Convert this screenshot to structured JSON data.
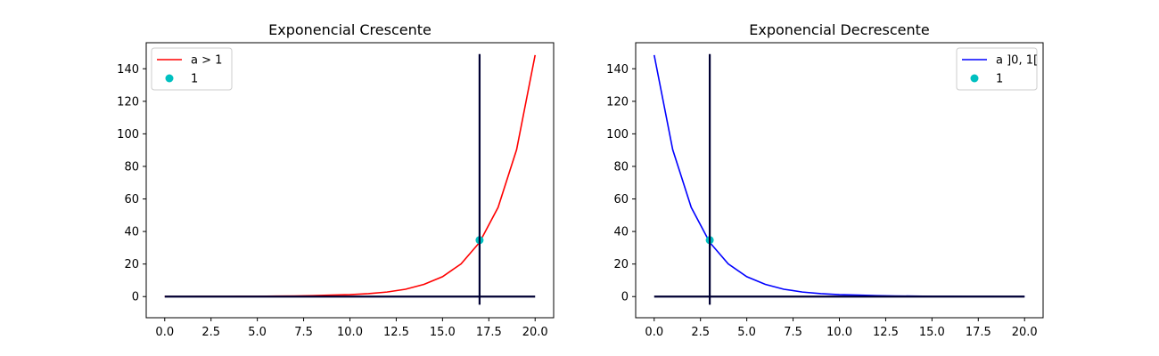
{
  "chart_data": [
    {
      "type": "line",
      "title": "Exponencial Crescente",
      "xlabel": "",
      "ylabel": "",
      "xlim": [
        -1,
        21
      ],
      "ylim": [
        -13,
        156
      ],
      "xticks": [
        "0.0",
        "2.5",
        "5.0",
        "7.5",
        "10.0",
        "12.5",
        "15.0",
        "17.5",
        "20.0"
      ],
      "yticks": [
        "0",
        "20",
        "40",
        "60",
        "80",
        "100",
        "120",
        "140"
      ],
      "grid": false,
      "legend_position": "upper left",
      "series": [
        {
          "name": "a > 1",
          "color": "#ff0000",
          "x": [
            0,
            1,
            2,
            3,
            4,
            5,
            6,
            7,
            8,
            9,
            10,
            11,
            12,
            13,
            14,
            15,
            16,
            17,
            18,
            19,
            20
          ],
          "y": [
            0,
            0.05,
            0.1,
            0.1,
            0.15,
            0.2,
            0.3,
            0.4,
            0.6,
            0.9,
            1.2,
            1.8,
            2.8,
            4.5,
            7.5,
            12.2,
            20.1,
            33.3,
            54.8,
            90.3,
            148.4
          ]
        }
      ],
      "point": {
        "name": "1",
        "color": "#00c0c0",
        "x": 17,
        "y": 34.7
      },
      "hline": {
        "y": 0,
        "x": [
          0,
          20
        ],
        "color": "#000033"
      },
      "vline": {
        "x": 17,
        "y": [
          -5,
          149
        ],
        "color": "#000033"
      }
    },
    {
      "type": "line",
      "title": "Exponencial Decrescente",
      "xlabel": "",
      "ylabel": "",
      "xlim": [
        -1,
        21
      ],
      "ylim": [
        -13,
        156
      ],
      "xticks": [
        "0.0",
        "2.5",
        "5.0",
        "7.5",
        "10.0",
        "12.5",
        "15.0",
        "17.5",
        "20.0"
      ],
      "yticks": [
        "0",
        "20",
        "40",
        "60",
        "80",
        "100",
        "120",
        "140"
      ],
      "grid": false,
      "legend_position": "upper right",
      "series": [
        {
          "name": "a ]0, 1[",
          "color": "#0000ff",
          "x": [
            0,
            1,
            2,
            3,
            4,
            5,
            6,
            7,
            8,
            9,
            10,
            11,
            12,
            13,
            14,
            15,
            16,
            17,
            18,
            19,
            20
          ],
          "y": [
            148.4,
            90.3,
            54.8,
            33.3,
            20.1,
            12.2,
            7.5,
            4.5,
            2.8,
            1.8,
            1.2,
            0.9,
            0.6,
            0.4,
            0.3,
            0.2,
            0.15,
            0.1,
            0.1,
            0.05,
            0
          ]
        }
      ],
      "point": {
        "name": "1",
        "color": "#00c0c0",
        "x": 3,
        "y": 34.7
      },
      "hline": {
        "y": 0,
        "x": [
          0,
          20
        ],
        "color": "#000033"
      },
      "vline": {
        "x": 3,
        "y": [
          -5,
          149
        ],
        "color": "#000033"
      }
    }
  ]
}
